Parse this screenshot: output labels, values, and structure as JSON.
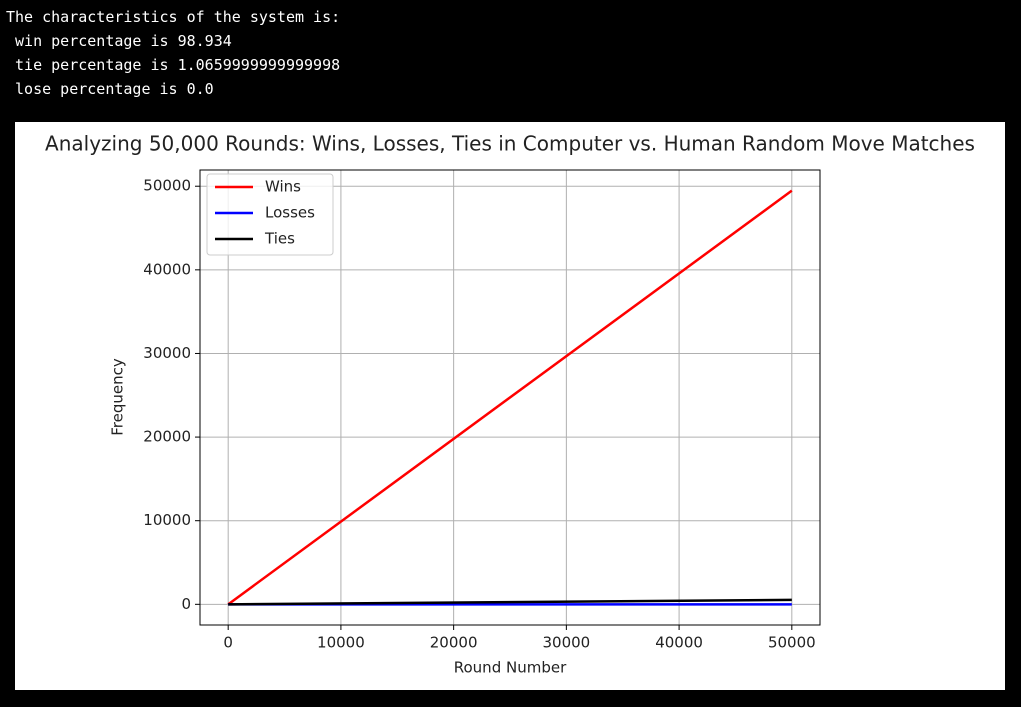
{
  "console": {
    "lines": [
      "The characteristics of the system is:",
      " win percentage is 98.934",
      " tie percentage is 1.0659999999999998",
      " lose percentage is 0.0"
    ]
  },
  "chart_data": {
    "type": "line",
    "title": "Analyzing 50,000 Rounds: Wins, Losses, Ties in Computer vs. Human Random Move Matches",
    "x_label": "Round Number",
    "y_label": "Frequency",
    "x": [
      0,
      50000
    ],
    "series": [
      {
        "name": "Wins",
        "color": "#ff0000",
        "values": [
          0,
          49467
        ]
      },
      {
        "name": "Losses",
        "color": "#0000ff",
        "values": [
          0,
          0
        ]
      },
      {
        "name": "Ties",
        "color": "#000000",
        "values": [
          0,
          533
        ]
      }
    ],
    "xlim": [
      -2500,
      52500
    ],
    "ylim": [
      -2473,
      51940
    ],
    "xticks": [
      0,
      10000,
      20000,
      30000,
      40000,
      50000
    ],
    "yticks": [
      0,
      10000,
      20000,
      30000,
      40000,
      50000
    ],
    "grid": true,
    "legend": "upper-left"
  }
}
